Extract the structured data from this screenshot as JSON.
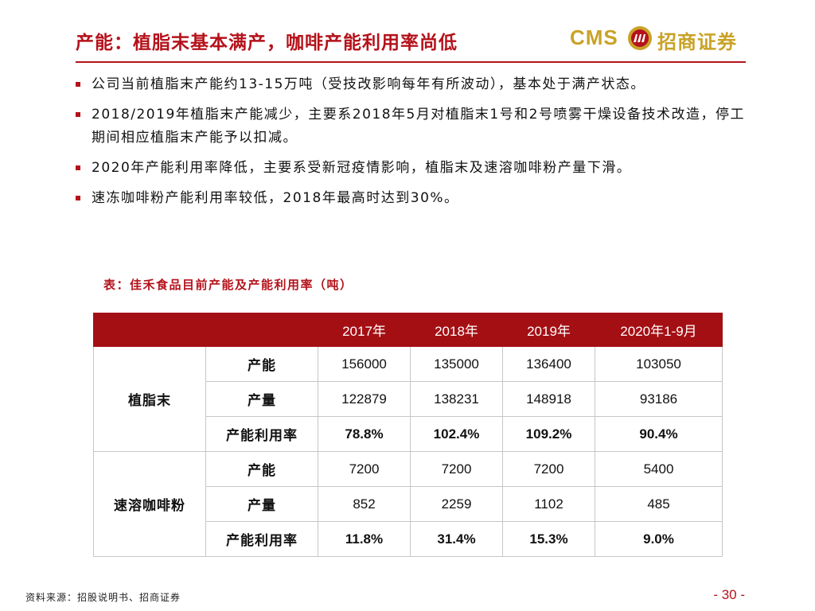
{
  "header": {
    "title": "产能：植脂末基本满产，咖啡产能利用率尚低",
    "logo": {
      "cms": "CMS",
      "company": "招商证券",
      "mark_icon": "cms-logo-mark-icon"
    }
  },
  "bullets": [
    "公司当前植脂末产能约13-15万吨（受技改影响每年有所波动），基本处于满产状态。",
    "2018/2019年植脂末产能减少，主要系2018年5月对植脂末1号和2号喷雾干燥设备技术改造，停工期间相应植脂末产能予以扣减。",
    "2020年产能利用率降低，主要系受新冠疫情影响，植脂末及速溶咖啡粉产量下滑。",
    "速冻咖啡粉产能利用率较低，2018年最高时达到30%。"
  ],
  "table": {
    "caption": "表：佳禾食品目前产能及产能利用率（吨）",
    "columns": [
      "2017年",
      "2018年",
      "2019年",
      "2020年1-9月"
    ],
    "groups": [
      {
        "name": "植脂末",
        "rows": [
          {
            "label": "产能",
            "values": [
              "156000",
              "135000",
              "136400",
              "103050"
            ]
          },
          {
            "label": "产量",
            "values": [
              "122879",
              "138231",
              "148918",
              "93186"
            ]
          },
          {
            "label": "产能利用率",
            "values": [
              "78.8%",
              "102.4%",
              "109.2%",
              "90.4%"
            ]
          }
        ]
      },
      {
        "name": "速溶咖啡粉",
        "rows": [
          {
            "label": "产能",
            "values": [
              "7200",
              "7200",
              "7200",
              "5400"
            ]
          },
          {
            "label": "产量",
            "values": [
              "852",
              "2259",
              "1102",
              "485"
            ]
          },
          {
            "label": "产能利用率",
            "values": [
              "11.8%",
              "31.4%",
              "15.3%",
              "9.0%"
            ]
          }
        ]
      }
    ]
  },
  "footer": {
    "source": "资料来源：招股说明书、招商证券",
    "page": "- 30 -"
  },
  "colors": {
    "accent": "#b5121b",
    "table_header_bg": "#a40f14",
    "logo_gold": "#c9a227"
  }
}
